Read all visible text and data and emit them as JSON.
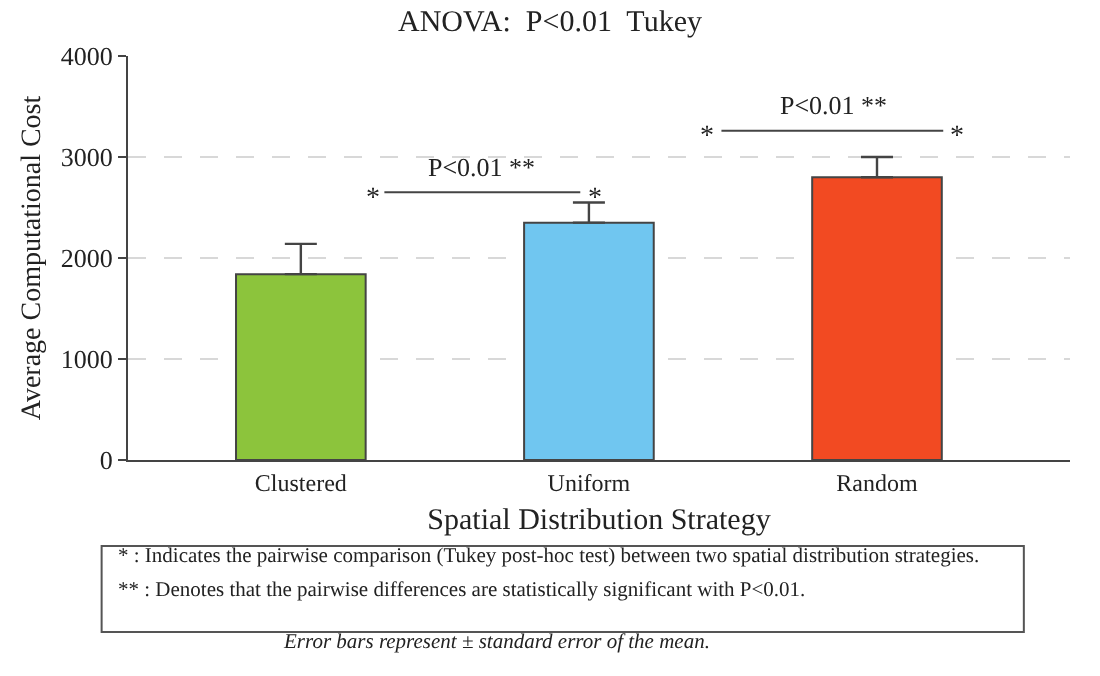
{
  "chart_data": {
    "type": "bar",
    "title": "ANOVA:  P<0.01  Tukey",
    "xlabel": "Spatial Distribution Strategy",
    "ylabel": "Average Computational Cost",
    "categories": [
      "Clustered",
      "Uniform",
      "Random"
    ],
    "values": [
      1840,
      2350,
      2800
    ],
    "colors": [
      "#8cc43c",
      "#70c6f0",
      "#f24a22"
    ],
    "errors": [
      [
        1840,
        2140
      ],
      [
        2350,
        2550
      ],
      [
        2800,
        3000
      ]
    ],
    "ylim": [
      0,
      4000
    ],
    "yticks": [
      0,
      1000,
      2000,
      3000,
      4000
    ],
    "grid": "y",
    "annotations": [
      "P<0.01 **",
      "*",
      "*",
      "P<0.01 **",
      "*",
      "*",
      "* : Indicates the pairwise comparison (Tukey post-hoc test) between two spatial distribution strategies.",
      "** : Denotes that the pairwise differences are statistically significant with P<0.01.",
      "Error bars represent ± standard error of the mean."
    ]
  }
}
